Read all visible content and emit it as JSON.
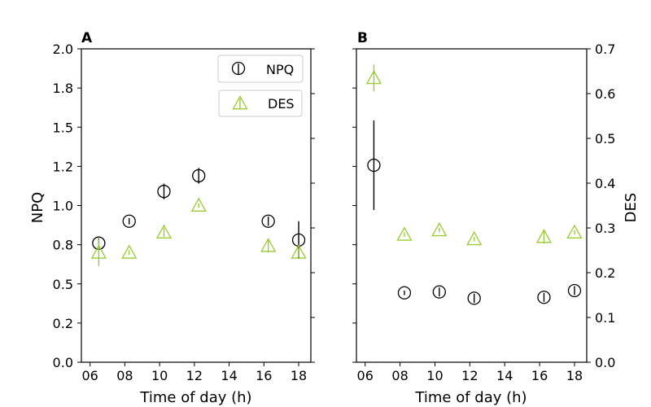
{
  "colors": {
    "npq": "#000000",
    "des": "#9acd32"
  },
  "chart_data": [
    {
      "type": "scatter",
      "panel_label": "A",
      "xlabel": "Time of day (h)",
      "ylabel": "NPQ",
      "xlim": [
        5.5,
        18.7
      ],
      "ylim": [
        0.0,
        2.0
      ],
      "x_ticks": [
        6,
        8,
        10,
        12,
        14,
        16,
        18
      ],
      "x_tick_labels": [
        "06",
        "08",
        "10",
        "12",
        "14",
        "16",
        "18"
      ],
      "y_ticks": [
        0.0,
        0.25,
        0.5,
        0.75,
        1.0,
        1.25,
        1.5,
        1.75,
        2.0
      ],
      "y_tick_labels": [
        "0.0",
        "0.2",
        "0.5",
        "0.8",
        "1.0",
        "1.2",
        "1.5",
        "1.8",
        "2.0"
      ],
      "secondary_y_ticks": [
        0.0,
        0.1,
        0.2,
        0.3,
        0.4,
        0.5,
        0.6,
        0.7
      ],
      "secondary_ylim": [
        0.0,
        0.7
      ],
      "legend": [
        {
          "label": "NPQ",
          "marker": "circle"
        },
        {
          "label": "DES",
          "marker": "triangle"
        }
      ],
      "legend_position": "top-right",
      "series": [
        {
          "name": "NPQ",
          "marker": "circle",
          "axis": "left",
          "points": [
            {
              "x": 6.5,
              "y": 0.76,
              "err": 0.03
            },
            {
              "x": 8.25,
              "y": 0.9,
              "err": 0.02
            },
            {
              "x": 10.25,
              "y": 1.09,
              "err": 0.05
            },
            {
              "x": 12.25,
              "y": 1.19,
              "err": 0.05
            },
            {
              "x": 16.25,
              "y": 0.9,
              "err": 0.03
            },
            {
              "x": 18.0,
              "y": 0.78,
              "err": 0.12
            }
          ]
        },
        {
          "name": "DES",
          "marker": "triangle",
          "axis": "right",
          "points": [
            {
              "x": 6.5,
              "y": 0.245,
              "err": 0.03
            },
            {
              "x": 8.25,
              "y": 0.245,
              "err": 0.005
            },
            {
              "x": 10.25,
              "y": 0.29,
              "err": 0.01
            },
            {
              "x": 12.25,
              "y": 0.35,
              "err": 0.005
            },
            {
              "x": 16.25,
              "y": 0.26,
              "err": 0.015
            },
            {
              "x": 18.0,
              "y": 0.245,
              "err": 0.01
            }
          ]
        }
      ]
    },
    {
      "type": "scatter",
      "panel_label": "B",
      "xlabel": "Time of day (h)",
      "ylabel": "DES",
      "xlim": [
        5.5,
        18.7
      ],
      "ylim": [
        0.0,
        0.7
      ],
      "x_ticks": [
        6,
        8,
        10,
        12,
        14,
        16,
        18
      ],
      "x_tick_labels": [
        "06",
        "08",
        "10",
        "12",
        "14",
        "16",
        "18"
      ],
      "y_ticks": [
        0.0,
        0.1,
        0.2,
        0.3,
        0.4,
        0.5,
        0.6,
        0.7
      ],
      "y_tick_labels": [
        "0.0",
        "0.1",
        "0.2",
        "0.3",
        "0.4",
        "0.5",
        "0.6",
        "0.7"
      ],
      "secondary_y_ticks": [
        0.0,
        0.25,
        0.5,
        0.75,
        1.0,
        1.25,
        1.5,
        1.75,
        2.0
      ],
      "secondary_ylim": [
        0.0,
        2.0
      ],
      "series": [
        {
          "name": "NPQ",
          "marker": "circle",
          "axis": "left",
          "points": [
            {
              "x": 6.5,
              "y": 0.44,
              "err": 0.1
            },
            {
              "x": 8.25,
              "y": 0.155,
              "err": 0.005
            },
            {
              "x": 10.25,
              "y": 0.157,
              "err": 0.01
            },
            {
              "x": 12.25,
              "y": 0.143,
              "err": 0.01
            },
            {
              "x": 16.25,
              "y": 0.145,
              "err": 0.01
            },
            {
              "x": 18.0,
              "y": 0.16,
              "err": 0.01
            }
          ]
        },
        {
          "name": "DES",
          "marker": "triangle",
          "axis": "left",
          "points": [
            {
              "x": 6.5,
              "y": 0.635,
              "err": 0.03
            },
            {
              "x": 8.25,
              "y": 0.285,
              "err": 0.005
            },
            {
              "x": 10.25,
              "y": 0.295,
              "err": 0.005
            },
            {
              "x": 12.25,
              "y": 0.275,
              "err": 0.005
            },
            {
              "x": 16.25,
              "y": 0.28,
              "err": 0.015
            },
            {
              "x": 18.0,
              "y": 0.29,
              "err": 0.005
            }
          ]
        }
      ]
    }
  ]
}
